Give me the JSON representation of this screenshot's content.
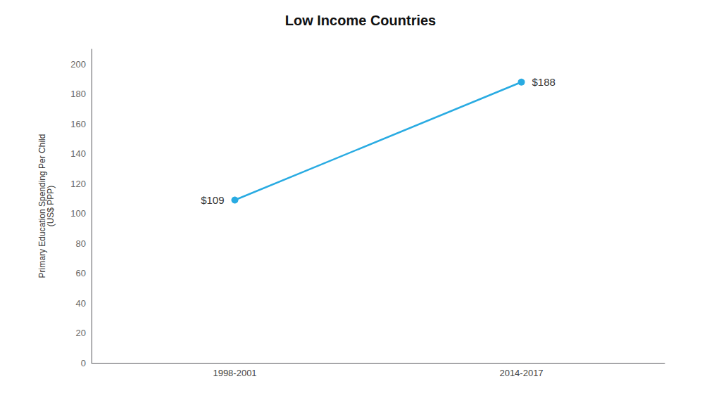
{
  "chart_data": {
    "type": "line",
    "title": "Low Income Countries",
    "categories": [
      "1998-2001",
      "2014-2017"
    ],
    "values": [
      109,
      188
    ],
    "annotations": [
      "$109",
      "$188"
    ],
    "color": "#29ABE2",
    "marker": "circle",
    "ylabel": "Primary Education Spending Per Child\n(US$ PPP)",
    "ylim": [
      0,
      210
    ],
    "yticks": [
      0,
      20,
      40,
      60,
      80,
      100,
      120,
      140,
      160,
      180,
      200
    ],
    "grid": false
  }
}
